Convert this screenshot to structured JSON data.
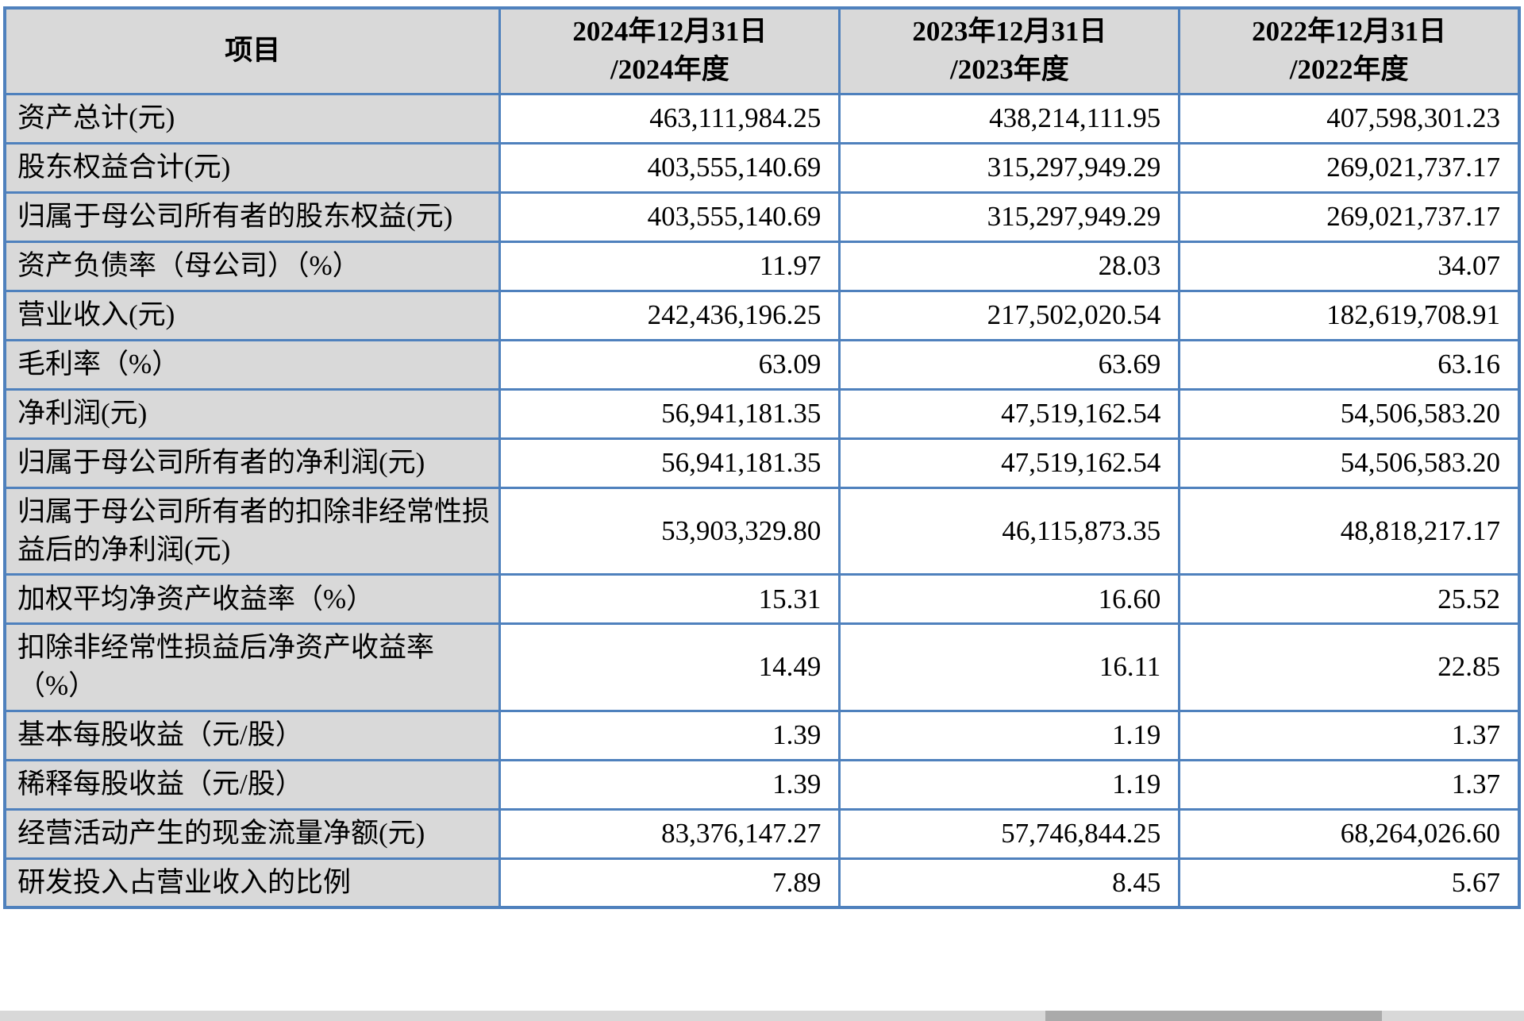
{
  "colors": {
    "border-blue": "#4f81bd",
    "header-gray": "#d9d9d9",
    "track-gray": "#d8d8d8",
    "thumb-gray": "#aaaaaa",
    "text-black": "#000000",
    "page-bg": "#ffffff"
  },
  "table": {
    "header": {
      "item_label": "项目",
      "columns": [
        {
          "line1": "2024年12月31日",
          "line2": "/2024年度"
        },
        {
          "line1": "2023年12月31日",
          "line2": "/2023年度"
        },
        {
          "line1": "2022年12月31日",
          "line2": "/2022年度"
        }
      ]
    },
    "rows": [
      {
        "label": "资产总计(元)",
        "values": [
          "463,111,984.25",
          "438,214,111.95",
          "407,598,301.23"
        ]
      },
      {
        "label": "股东权益合计(元)",
        "values": [
          "403,555,140.69",
          "315,297,949.29",
          "269,021,737.17"
        ]
      },
      {
        "label": "归属于母公司所有者的股东权益(元)",
        "values": [
          "403,555,140.69",
          "315,297,949.29",
          "269,021,737.17"
        ]
      },
      {
        "label": "资产负债率（母公司）（%）",
        "values": [
          "11.97",
          "28.03",
          "34.07"
        ]
      },
      {
        "label": "营业收入(元)",
        "values": [
          "242,436,196.25",
          "217,502,020.54",
          "182,619,708.91"
        ]
      },
      {
        "label": "毛利率（%）",
        "values": [
          "63.09",
          "63.69",
          "63.16"
        ]
      },
      {
        "label": "净利润(元)",
        "values": [
          "56,941,181.35",
          "47,519,162.54",
          "54,506,583.20"
        ]
      },
      {
        "label": "归属于母公司所有者的净利润(元)",
        "values": [
          "56,941,181.35",
          "47,519,162.54",
          "54,506,583.20"
        ]
      },
      {
        "label": "归属于母公司所有者的扣除非经常性损益后的净利润(元)",
        "values": [
          "53,903,329.80",
          "46,115,873.35",
          "48,818,217.17"
        ]
      },
      {
        "label": "加权平均净资产收益率（%）",
        "values": [
          "15.31",
          "16.60",
          "25.52"
        ]
      },
      {
        "label": "扣除非经常性损益后净资产收益率（%）",
        "values": [
          "14.49",
          "16.11",
          "22.85"
        ]
      },
      {
        "label": "基本每股收益（元/股）",
        "values": [
          "1.39",
          "1.19",
          "1.37"
        ]
      },
      {
        "label": "稀释每股收益（元/股）",
        "values": [
          "1.39",
          "1.19",
          "1.37"
        ]
      },
      {
        "label": "经营活动产生的现金流量净额(元)",
        "values": [
          "83,376,147.27",
          "57,746,844.25",
          "68,264,026.60"
        ]
      },
      {
        "label": "研发投入占营业收入的比例",
        "values": [
          "7.89",
          "8.45",
          "5.67"
        ]
      }
    ]
  }
}
